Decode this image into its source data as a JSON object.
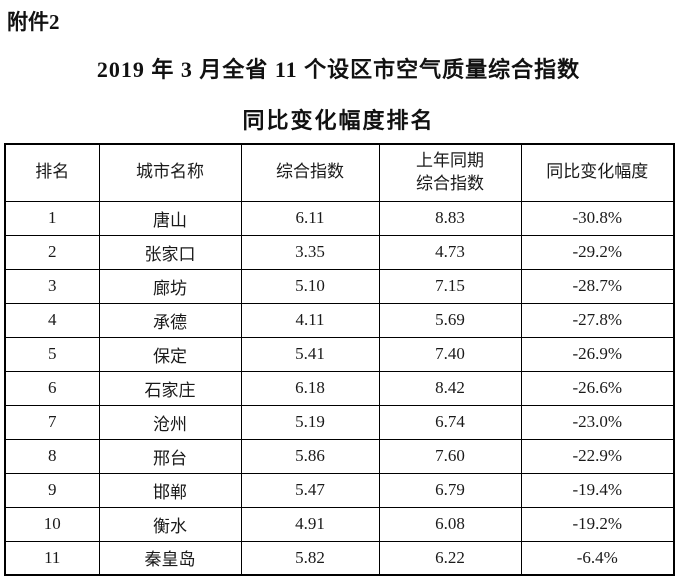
{
  "page": {
    "attachment_label": "附件2",
    "title_line1": "2019 年 3 月全省 11 个设区市空气质量综合指数",
    "title_line2": "同比变化幅度排名"
  },
  "table": {
    "headers": [
      {
        "line1": "排名",
        "line2": ""
      },
      {
        "line1": "城市名称",
        "line2": ""
      },
      {
        "line1": "综合指数",
        "line2": ""
      },
      {
        "line1": "上年同期",
        "line2": "综合指数"
      },
      {
        "line1": "同比变化幅度",
        "line2": ""
      }
    ],
    "rows": [
      {
        "rank": "1",
        "city": "唐山",
        "index": "6.11",
        "prev_index": "8.83",
        "yoy_change": "-30.8%"
      },
      {
        "rank": "2",
        "city": "张家口",
        "index": "3.35",
        "prev_index": "4.73",
        "yoy_change": "-29.2%"
      },
      {
        "rank": "3",
        "city": "廊坊",
        "index": "5.10",
        "prev_index": "7.15",
        "yoy_change": "-28.7%"
      },
      {
        "rank": "4",
        "city": "承德",
        "index": "4.11",
        "prev_index": "5.69",
        "yoy_change": "-27.8%"
      },
      {
        "rank": "5",
        "city": "保定",
        "index": "5.41",
        "prev_index": "7.40",
        "yoy_change": "-26.9%"
      },
      {
        "rank": "6",
        "city": "石家庄",
        "index": "6.18",
        "prev_index": "8.42",
        "yoy_change": "-26.6%"
      },
      {
        "rank": "7",
        "city": "沧州",
        "index": "5.19",
        "prev_index": "6.74",
        "yoy_change": "-23.0%"
      },
      {
        "rank": "8",
        "city": "邢台",
        "index": "5.86",
        "prev_index": "7.60",
        "yoy_change": "-22.9%"
      },
      {
        "rank": "9",
        "city": "邯郸",
        "index": "5.47",
        "prev_index": "6.79",
        "yoy_change": "-19.4%"
      },
      {
        "rank": "10",
        "city": "衡水",
        "index": "4.91",
        "prev_index": "6.08",
        "yoy_change": "-19.2%"
      },
      {
        "rank": "11",
        "city": "秦皇岛",
        "index": "5.82",
        "prev_index": "6.22",
        "yoy_change": "-6.4%"
      }
    ]
  }
}
